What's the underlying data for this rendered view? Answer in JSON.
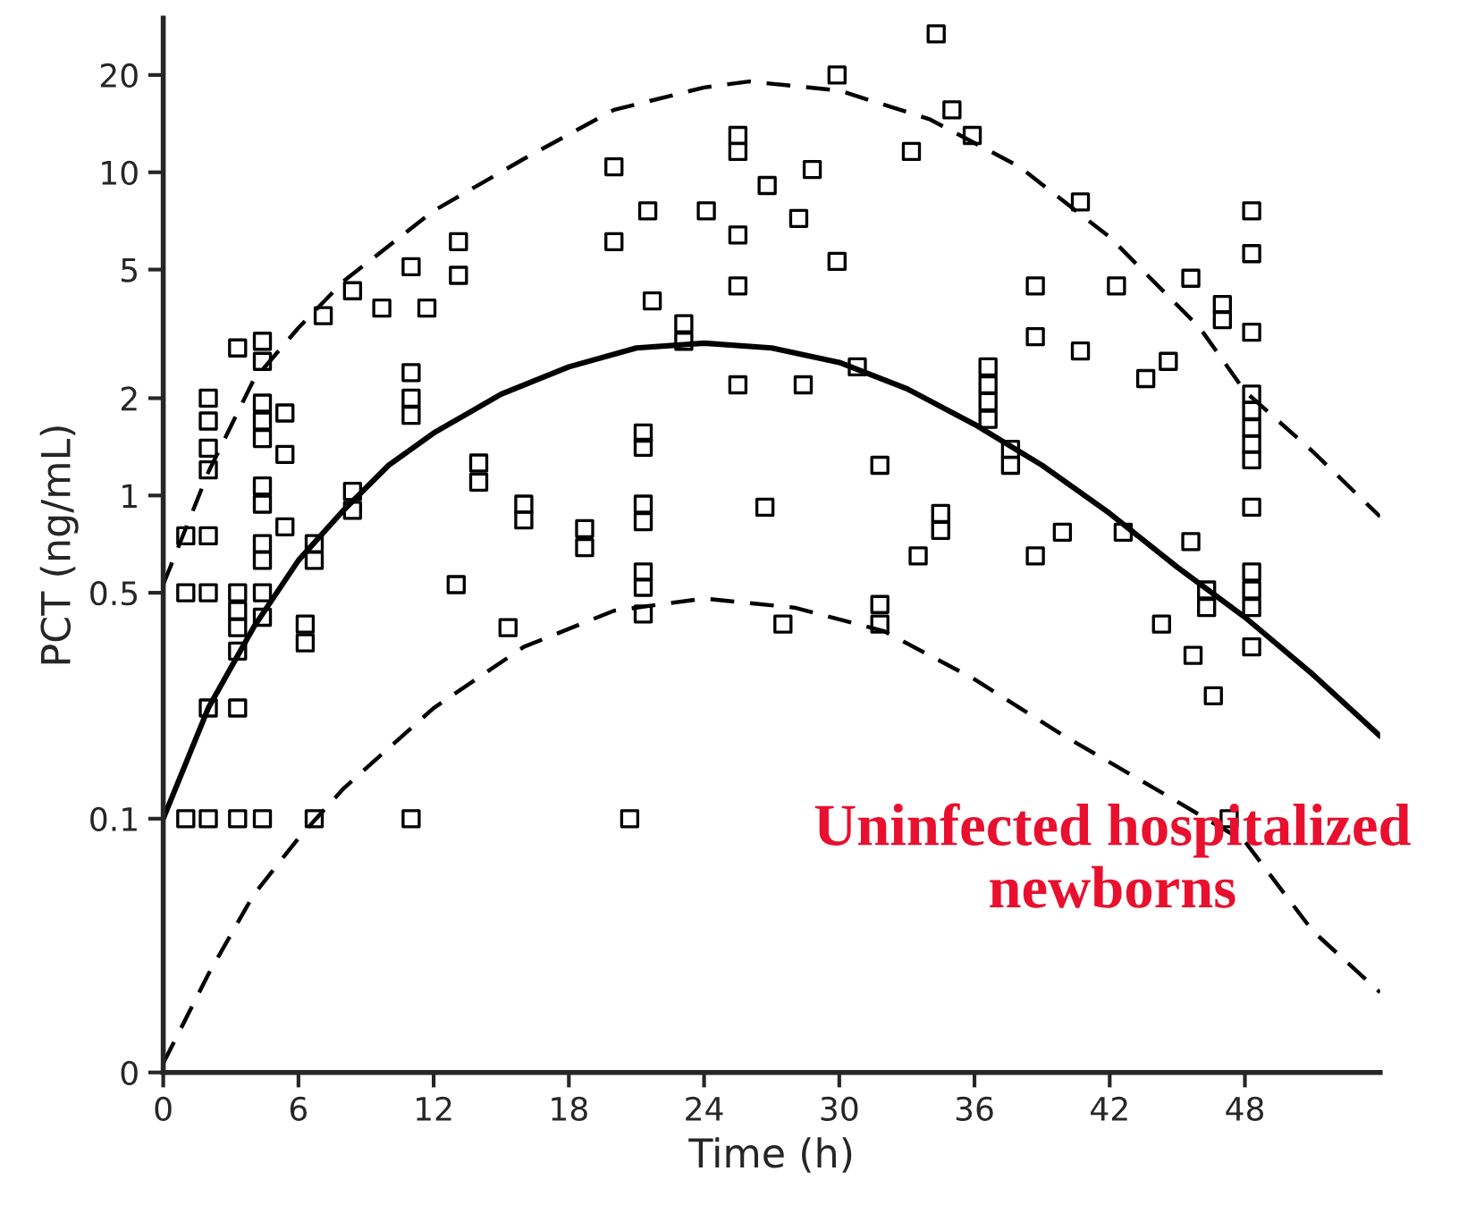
{
  "chart_data": {
    "type": "scatter",
    "xlabel": "Time (h)",
    "ylabel": "PCT (ng/mL)",
    "log": "y",
    "xlim": [
      0,
      54
    ],
    "xticks": [
      0,
      6,
      12,
      18,
      24,
      30,
      36,
      42,
      48
    ],
    "ylim": [
      0.0164,
      30
    ],
    "yticks": [
      {
        "value": 0.0164,
        "label": "0"
      },
      0.1,
      0.5,
      1,
      2,
      5,
      10,
      20
    ],
    "grid": false,
    "annotations": [
      "Uninfected hospitalized\nnewborns"
    ],
    "series": [
      {
        "color": "#000000",
        "marker": "square",
        "x": [
          1.0,
          2.0,
          1.0,
          2.0,
          2.0,
          2.0,
          2.0,
          2.0,
          2.0,
          3.3,
          3.3,
          4.4,
          4.4,
          4.4,
          4.4,
          4.4,
          4.4,
          4.4,
          4.4,
          4.4,
          4.4,
          4.4,
          3.3,
          3.3,
          3.3,
          3.3,
          5.4,
          5.4,
          5.4,
          6.7,
          6.7,
          6.3,
          6.3,
          7.1,
          8.4,
          8.4,
          8.4,
          9.7,
          11.0,
          11.7,
          11.0,
          11.0,
          11.0,
          13.1,
          13.1,
          14.0,
          14.0,
          16.0,
          16.0,
          18.7,
          18.7,
          13.0,
          15.3,
          20.0,
          20.0,
          1.0,
          2.0,
          3.3,
          4.4,
          6.7,
          11.0,
          34.3,
          29.9,
          35.0,
          35.9,
          33.2,
          25.5,
          25.5,
          28.8,
          26.8,
          21.5,
          24.1,
          28.2,
          25.5,
          29.9,
          25.5,
          21.7,
          23.1,
          23.1,
          25.5,
          28.4,
          30.8,
          36.6,
          36.6,
          36.6,
          36.6,
          21.3,
          21.3,
          31.8,
          21.3,
          21.3,
          26.7,
          34.5,
          34.5,
          33.5,
          21.3,
          21.3,
          21.3,
          27.5,
          31.8,
          31.8,
          20.7,
          40.7,
          48.3,
          48.3,
          48.3,
          38.7,
          38.7,
          42.3,
          45.6,
          47.0,
          47.0,
          40.7,
          44.6,
          43.6,
          37.6,
          37.6,
          48.3,
          48.3,
          48.3,
          48.3,
          48.3,
          48.3,
          39.9,
          42.6,
          38.7,
          45.6,
          46.3,
          46.3,
          48.3,
          48.3,
          48.3,
          44.3,
          45.7,
          48.3,
          46.6,
          47.3
        ],
        "values": [
          0.75,
          0.75,
          0.5,
          0.5,
          2.0,
          1.7,
          1.4,
          1.2,
          0.22,
          0.22,
          2.86,
          3.0,
          2.6,
          1.93,
          1.7,
          1.5,
          1.07,
          0.94,
          0.71,
          0.63,
          0.5,
          0.42,
          0.5,
          0.44,
          0.39,
          0.33,
          1.8,
          1.34,
          0.8,
          0.71,
          0.63,
          0.4,
          0.35,
          3.6,
          4.3,
          1.03,
          0.9,
          3.8,
          5.1,
          3.8,
          2.4,
          2.0,
          1.77,
          6.1,
          4.8,
          1.26,
          1.1,
          0.94,
          0.84,
          0.79,
          0.69,
          0.53,
          0.39,
          10.4,
          6.1,
          0.1,
          0.1,
          0.1,
          0.1,
          0.1,
          0.1,
          26.8,
          20,
          15.6,
          13,
          11.6,
          13,
          11.6,
          10.2,
          9.1,
          7.6,
          7.6,
          7.2,
          6.4,
          5.3,
          4.45,
          4.0,
          3.4,
          3.0,
          2.2,
          2.2,
          2.5,
          2.5,
          2.2,
          1.95,
          1.72,
          1.56,
          1.41,
          1.24,
          0.94,
          0.83,
          0.92,
          0.88,
          0.78,
          0.65,
          0.58,
          0.52,
          0.43,
          0.4,
          0.46,
          0.4,
          0.1,
          8.1,
          7.6,
          5.6,
          3.2,
          4.45,
          3.1,
          4.45,
          4.7,
          3.9,
          3.5,
          2.8,
          2.6,
          2.3,
          1.39,
          1.24,
          2.06,
          1.83,
          1.62,
          1.44,
          1.29,
          0.92,
          0.77,
          0.77,
          0.65,
          0.72,
          0.51,
          0.45,
          0.58,
          0.51,
          0.45,
          0.4,
          0.32,
          0.34,
          0.24,
          0.1
        ]
      },
      {
        "type": "line",
        "color": "#000000",
        "line_style": "solid",
        "marker": "none",
        "x": [
          0,
          2,
          4,
          6,
          8,
          10,
          12,
          15,
          18,
          21,
          24,
          27,
          30,
          33,
          36,
          39,
          42,
          45,
          48,
          51,
          54
        ],
        "values": [
          0.1,
          0.22,
          0.39,
          0.63,
          0.9,
          1.24,
          1.56,
          2.06,
          2.5,
          2.86,
          2.96,
          2.86,
          2.58,
          2.14,
          1.66,
          1.24,
          0.88,
          0.6,
          0.42,
          0.28,
          0.18
        ]
      },
      {
        "type": "line",
        "color": "#000000",
        "line_style": "dashed",
        "marker": "none",
        "x": [
          0,
          2,
          4,
          6,
          8,
          12,
          16,
          20,
          24,
          26,
          30,
          34,
          38,
          42,
          46,
          48,
          51,
          54
        ],
        "values": [
          0.53,
          1.18,
          2.27,
          3.3,
          4.6,
          7.6,
          11,
          15.6,
          18.3,
          19.1,
          17.9,
          14.6,
          10.4,
          6.3,
          3.3,
          2.1,
          1.37,
          0.86
        ]
      },
      {
        "type": "line",
        "color": "#000000",
        "line_style": "dashed",
        "marker": "none",
        "x": [
          0,
          2,
          4,
          6,
          8,
          12,
          16,
          20,
          24,
          28,
          32,
          36,
          40,
          44,
          48,
          51,
          54
        ],
        "values": [
          0.0175,
          0.033,
          0.058,
          0.087,
          0.124,
          0.22,
          0.34,
          0.44,
          0.48,
          0.45,
          0.38,
          0.27,
          0.18,
          0.124,
          0.085,
          0.045,
          0.029
        ]
      }
    ]
  }
}
